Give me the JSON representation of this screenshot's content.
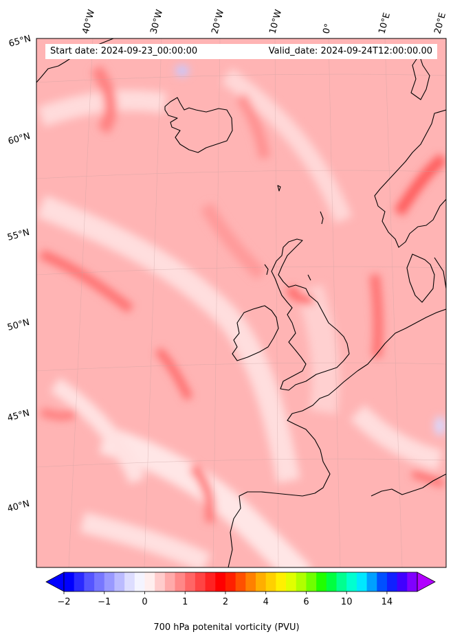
{
  "header": {
    "start_date": "Start date: 2024-09-23_00:00:00",
    "valid_date": "Valid_date: 2024-09-24T12:00:00.00"
  },
  "longitude_labels": [
    "40°W",
    "30°W",
    "20°W",
    "10°W",
    "0°",
    "10°E",
    "20°E"
  ],
  "latitude_labels": [
    "65°N",
    "60°N",
    "55°N",
    "50°N",
    "45°N",
    "40°N"
  ],
  "colorbar": {
    "label": "700 hPa potenital vorticity (PVU)",
    "tick_labels": [
      "−2",
      "−1",
      "0",
      "1",
      "2",
      "4",
      "6",
      "10",
      "14"
    ],
    "tick_values": [
      -2,
      -1,
      0,
      1,
      2,
      4,
      6,
      10,
      14
    ],
    "extend": "both",
    "colors": [
      "#0000ff",
      "#2a2aff",
      "#5555ff",
      "#7777ff",
      "#9999ff",
      "#bbbbff",
      "#ddddff",
      "#f4f4ff",
      "#ffeeee",
      "#ffcccc",
      "#ffaaaa",
      "#ff8888",
      "#ff6666",
      "#ff4444",
      "#ff2222",
      "#ff0000",
      "#ff2000",
      "#ff5000",
      "#ff8000",
      "#ffae00",
      "#ffd000",
      "#fff000",
      "#e0ff00",
      "#b0ff00",
      "#70ff00",
      "#20ff00",
      "#00ff40",
      "#00ff90",
      "#00ffd0",
      "#00e8ff",
      "#00a0ff",
      "#0050ff",
      "#1020ff",
      "#4000ff",
      "#8000ff"
    ],
    "under_color": "#0000ff",
    "over_color": "#b000ff"
  },
  "map": {
    "field": "700 hPa potential vorticity",
    "ocean_base_color": "#ffb2b2",
    "coastline_color": "#000000"
  }
}
